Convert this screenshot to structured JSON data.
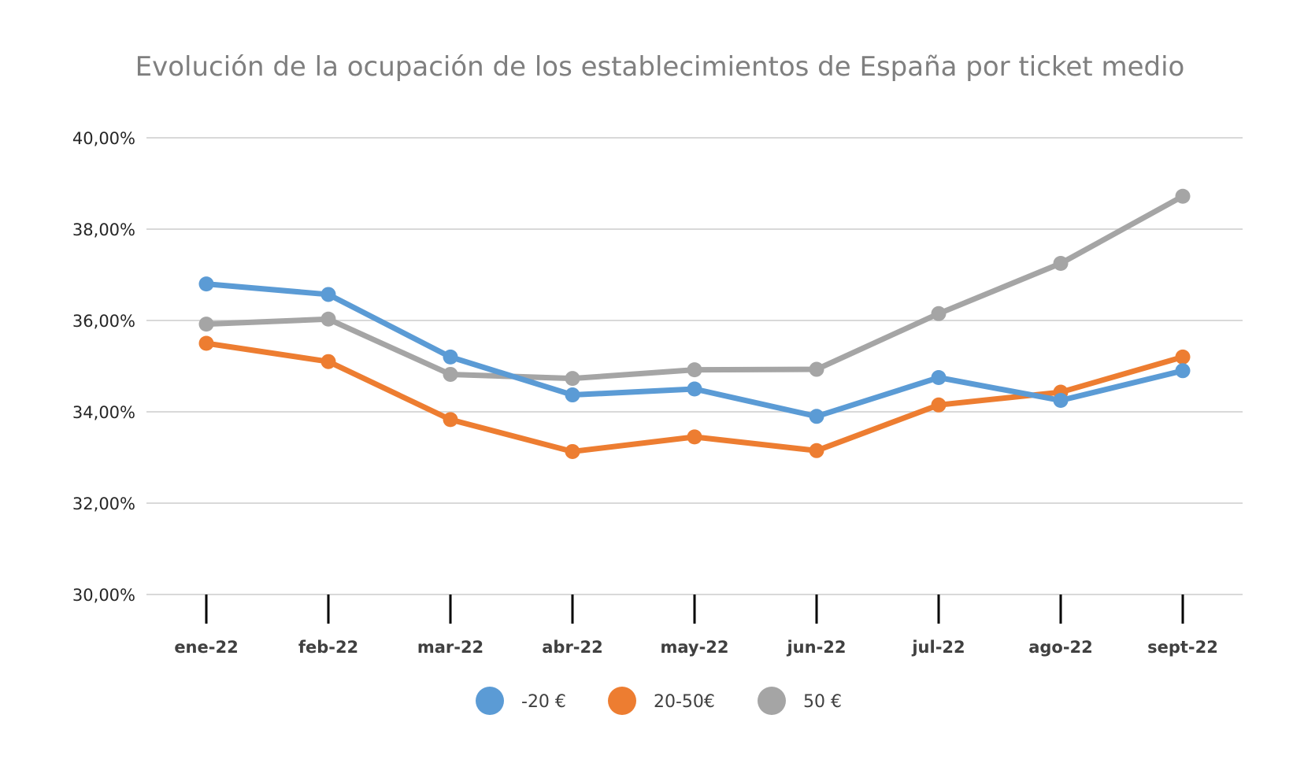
{
  "chart_data": {
    "type": "line",
    "title": "Evolución de la ocupación de los establecimientos de España por ticket medio",
    "xlabel": "",
    "ylabel": "",
    "categories": [
      "ene-22",
      "feb-22",
      "mar-22",
      "abr-22",
      "may-22",
      "jun-22",
      "jul-22",
      "ago-22",
      "sept-22"
    ],
    "ylim": [
      30,
      40
    ],
    "yticks": [
      30,
      32,
      34,
      36,
      38,
      40
    ],
    "ytick_labels": [
      "30,00%",
      "32,00%",
      "34,00%",
      "36,00%",
      "38,00%",
      "40,00%"
    ],
    "grid": true,
    "legend_position": "bottom",
    "series": [
      {
        "name": "-20 €",
        "color": "#5b9bd5",
        "values": [
          36.8,
          36.57,
          35.2,
          34.37,
          34.5,
          33.9,
          34.75,
          34.25,
          34.9
        ]
      },
      {
        "name": "20-50€",
        "color": "#ed7d31",
        "values": [
          35.5,
          35.1,
          33.83,
          33.13,
          33.45,
          33.15,
          34.15,
          34.43,
          35.2
        ]
      },
      {
        "name": "50 €",
        "color": "#a5a5a5",
        "values": [
          35.92,
          36.03,
          34.82,
          34.73,
          34.92,
          34.93,
          36.15,
          37.25,
          38.72
        ]
      }
    ]
  }
}
